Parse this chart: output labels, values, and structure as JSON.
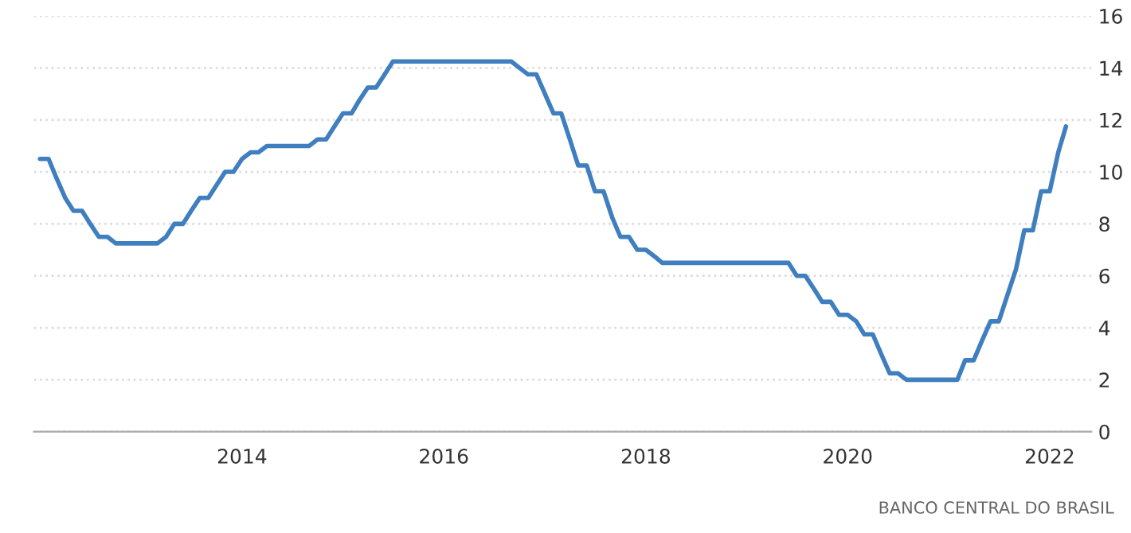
{
  "chart_data": {
    "type": "line",
    "x": [
      "2012-01",
      "2012-02",
      "2012-03",
      "2012-04",
      "2012-05",
      "2012-06",
      "2012-07",
      "2012-08",
      "2012-09",
      "2012-10",
      "2013-03",
      "2013-04",
      "2013-05",
      "2013-06",
      "2013-07",
      "2013-08",
      "2013-09",
      "2013-10",
      "2013-11",
      "2013-12",
      "2014-01",
      "2014-02",
      "2014-03",
      "2014-04",
      "2014-09",
      "2014-10",
      "2014-11",
      "2014-12",
      "2015-01",
      "2015-02",
      "2015-03",
      "2015-04",
      "2015-05",
      "2015-06",
      "2015-07",
      "2016-09",
      "2016-10",
      "2016-11",
      "2016-12",
      "2017-01",
      "2017-02",
      "2017-03",
      "2017-04",
      "2017-05",
      "2017-06",
      "2017-07",
      "2017-08",
      "2017-09",
      "2017-10",
      "2017-11",
      "2017-12",
      "2018-01",
      "2018-02",
      "2018-03",
      "2019-06",
      "2019-07",
      "2019-08",
      "2019-09",
      "2019-10",
      "2019-11",
      "2019-12",
      "2020-01",
      "2020-02",
      "2020-03",
      "2020-04",
      "2020-05",
      "2020-06",
      "2020-07",
      "2020-08",
      "2021-02",
      "2021-03",
      "2021-04",
      "2021-05",
      "2021-06",
      "2021-07",
      "2021-08",
      "2021-09",
      "2021-10",
      "2021-11",
      "2021-12",
      "2022-01",
      "2022-02",
      "2022-03"
    ],
    "series": [
      {
        "color": "#3f7fbf",
        "values": [
          10.5,
          10.5,
          9.75,
          9.0,
          8.5,
          8.5,
          8.0,
          7.5,
          7.5,
          7.25,
          7.25,
          7.5,
          8.0,
          8.0,
          8.5,
          9.0,
          9.0,
          9.5,
          10.0,
          10.0,
          10.5,
          10.75,
          10.75,
          11.0,
          11.0,
          11.25,
          11.25,
          11.75,
          12.25,
          12.25,
          12.75,
          13.25,
          13.25,
          13.75,
          14.25,
          14.25,
          14.0,
          13.75,
          13.75,
          13.0,
          12.25,
          12.25,
          11.25,
          10.25,
          10.25,
          9.25,
          9.25,
          8.25,
          7.5,
          7.5,
          7.0,
          7.0,
          6.75,
          6.5,
          6.5,
          6.0,
          6.0,
          5.5,
          5.0,
          5.0,
          4.5,
          4.5,
          4.25,
          3.75,
          3.75,
          3.0,
          2.25,
          2.25,
          2.0,
          2.0,
          2.75,
          2.75,
          3.5,
          4.25,
          4.25,
          5.25,
          6.25,
          7.75,
          7.75,
          9.25,
          9.25,
          10.75,
          11.75
        ]
      }
    ],
    "xlim": [
      "2011-12-10",
      "2022-06-01"
    ],
    "xticks": [
      {
        "value": "2014",
        "label": "2014"
      },
      {
        "value": "2016",
        "label": "2016"
      },
      {
        "value": "2018",
        "label": "2018"
      },
      {
        "value": "2020",
        "label": "2020"
      },
      {
        "value": "2022",
        "label": "2022"
      }
    ],
    "ylim": [
      0,
      16
    ],
    "yticks": [
      0,
      2,
      4,
      6,
      8,
      10,
      12,
      14,
      16
    ],
    "grid": "y",
    "legend": false,
    "marker": "none",
    "line_style": "solid",
    "annotations": [
      "BANCO CENTRAL DO BRASIL"
    ]
  }
}
